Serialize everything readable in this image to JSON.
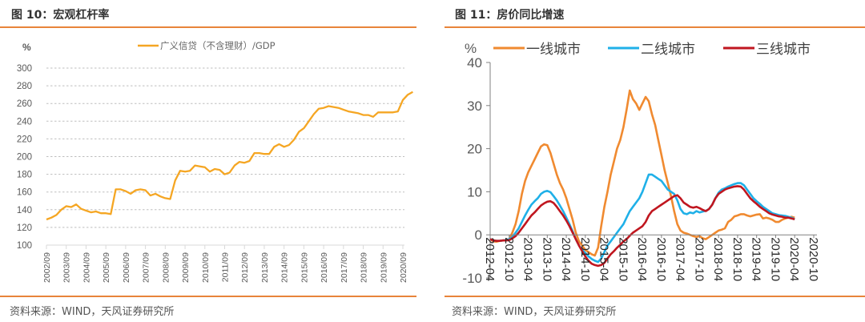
{
  "figures": [
    {
      "title": "图 10：宏观杠杆率",
      "source": "资料来源：WIND，天风证券研究所"
    },
    {
      "title": "图 11：房价同比增速",
      "source": "资料来源：WIND，天风证券研究所"
    }
  ],
  "chart_data": [
    {
      "type": "line",
      "title": "图 10：宏观杠杆率",
      "ylabel": "%",
      "xlabel": "",
      "ylim": [
        100,
        300
      ],
      "yticks": [
        100,
        120,
        140,
        160,
        180,
        200,
        220,
        240,
        260,
        280,
        300
      ],
      "grid": true,
      "legend_position": "top-center",
      "x_tick_labels": [
        "2002/09",
        "2003/09",
        "2004/09",
        "2005/09",
        "2006/09",
        "2007/09",
        "2008/09",
        "2009/09",
        "2010/09",
        "2011/09",
        "2012/09",
        "2013/09",
        "2014/09",
        "2015/09",
        "2016/09",
        "2017/09",
        "2018/09",
        "2019/09",
        "2020/09"
      ],
      "x_frequency": "quarterly",
      "x_start": "2002/09",
      "series": [
        {
          "name": "广义信贷（不含理财）/GDP",
          "color": "#f5a623",
          "values": [
            129,
            131,
            134,
            140,
            144,
            143,
            146,
            141,
            139,
            137,
            138,
            136,
            136,
            135,
            163,
            163,
            161,
            158,
            162,
            163,
            162,
            156,
            158,
            155,
            153,
            152,
            173,
            184,
            183,
            184,
            190,
            189,
            188,
            183,
            186,
            185,
            180,
            182,
            190,
            194,
            193,
            195,
            204,
            204,
            203,
            203,
            211,
            214,
            211,
            213,
            219,
            228,
            232,
            240,
            248,
            254,
            255,
            257,
            256,
            255,
            253,
            251,
            250,
            249,
            247,
            247,
            245,
            250,
            250,
            250,
            250,
            251,
            264,
            270,
            273
          ]
        }
      ]
    },
    {
      "type": "line",
      "title": "图 11：房价同比增速",
      "ylabel": "%",
      "xlabel": "",
      "ylim": [
        -10,
        40
      ],
      "yticks": [
        -10,
        0,
        10,
        20,
        30,
        40
      ],
      "grid": false,
      "legend_position": "top",
      "x_tick_labels": [
        "2012-04",
        "2012-10",
        "2013-04",
        "2013-10",
        "2014-04",
        "2014-10",
        "2015-04",
        "2015-10",
        "2016-04",
        "2016-10",
        "2017-04",
        "2017-10",
        "2018-04",
        "2018-10",
        "2019-04",
        "2019-10",
        "2020-04",
        "2020-10"
      ],
      "x_frequency": "monthly",
      "x_start": "2012-04",
      "series": [
        {
          "name": "一线城市",
          "color": "#f08a30",
          "values": [
            -1.0,
            -1.5,
            -1.6,
            -1.4,
            -1.3,
            -1.2,
            -1.0,
            0.5,
            2.5,
            5.5,
            9.5,
            12.5,
            14.5,
            16.0,
            17.5,
            19.0,
            20.5,
            21.0,
            20.8,
            19.0,
            16.5,
            14.0,
            12.0,
            10.5,
            8.5,
            6.0,
            3.5,
            0.5,
            -1.5,
            -2.5,
            -3.5,
            -4.0,
            -4.5,
            -4.8,
            -3.0,
            2.0,
            6.5,
            10.0,
            14.0,
            17.0,
            20.0,
            22.0,
            25.0,
            29.0,
            33.5,
            31.5,
            30.5,
            29.0,
            30.5,
            32.0,
            31.0,
            28.0,
            25.5,
            22.0,
            18.5,
            15.0,
            12.0,
            9.0,
            5.5,
            2.5,
            1.0,
            0.5,
            0.3,
            0.0,
            -0.3,
            -0.5,
            -0.3,
            -0.8,
            -1.0,
            -0.5,
            0.0,
            0.5,
            1.0,
            1.2,
            1.5,
            3.0,
            3.5,
            4.3,
            4.5,
            4.8,
            4.8,
            4.5,
            4.3,
            4.5,
            4.7,
            4.8,
            3.8,
            4.0,
            3.8,
            3.5,
            3.0,
            3.0,
            3.5,
            3.8,
            4.0,
            4.2,
            4.0
          ]
        },
        {
          "name": "二线城市",
          "color": "#1fb0e8",
          "values": [
            -1.0,
            -1.3,
            -1.4,
            -1.4,
            -1.3,
            -1.2,
            -1.0,
            -0.5,
            0.5,
            1.5,
            3.0,
            4.5,
            5.8,
            7.0,
            7.8,
            8.5,
            9.5,
            10.0,
            10.2,
            9.9,
            9.0,
            8.0,
            6.8,
            5.5,
            4.0,
            2.5,
            0.8,
            -1.0,
            -2.5,
            -3.5,
            -4.2,
            -5.0,
            -5.6,
            -6.0,
            -6.3,
            -5.5,
            -4.0,
            -2.5,
            -1.5,
            -0.5,
            0.5,
            1.5,
            2.5,
            4.0,
            5.5,
            6.5,
            7.5,
            8.5,
            10.0,
            12.0,
            14.0,
            14.0,
            13.5,
            13.0,
            12.5,
            11.5,
            10.5,
            10.0,
            9.5,
            8.0,
            6.0,
            5.0,
            4.8,
            5.2,
            5.0,
            5.5,
            5.2,
            5.4,
            5.6,
            6.0,
            7.0,
            8.5,
            9.8,
            10.5,
            10.8,
            11.2,
            11.5,
            11.8,
            12.0,
            12.0,
            11.5,
            10.5,
            9.5,
            8.5,
            7.8,
            7.2,
            6.5,
            6.0,
            5.5,
            5.0,
            4.8,
            4.6,
            4.5,
            4.4,
            4.2,
            4.0,
            3.6
          ]
        },
        {
          "name": "三线城市",
          "color": "#c0161f",
          "values": [
            -1.0,
            -1.3,
            -1.4,
            -1.4,
            -1.3,
            -1.3,
            -1.2,
            -0.8,
            -0.3,
            0.5,
            1.5,
            2.5,
            3.5,
            4.5,
            5.2,
            6.0,
            6.8,
            7.3,
            7.7,
            7.8,
            7.4,
            6.5,
            5.5,
            4.5,
            3.3,
            2.0,
            0.5,
            -1.0,
            -2.5,
            -3.8,
            -5.0,
            -6.0,
            -6.7,
            -7.0,
            -7.2,
            -7.0,
            -6.5,
            -5.5,
            -4.5,
            -3.8,
            -3.0,
            -2.3,
            -1.5,
            -1.0,
            -0.2,
            0.5,
            1.0,
            1.5,
            2.0,
            3.0,
            4.5,
            5.5,
            6.0,
            6.5,
            7.0,
            7.5,
            8.0,
            8.5,
            9.0,
            9.2,
            8.5,
            7.5,
            7.0,
            6.5,
            6.3,
            6.5,
            6.2,
            5.8,
            5.5,
            6.0,
            7.0,
            8.5,
            9.5,
            10.0,
            10.5,
            10.8,
            11.0,
            11.2,
            11.3,
            11.2,
            10.5,
            9.5,
            8.5,
            7.8,
            7.2,
            6.5,
            6.0,
            5.5,
            5.0,
            4.7,
            4.5,
            4.3,
            4.2,
            4.0,
            4.0,
            3.8,
            3.6
          ]
        }
      ]
    }
  ]
}
